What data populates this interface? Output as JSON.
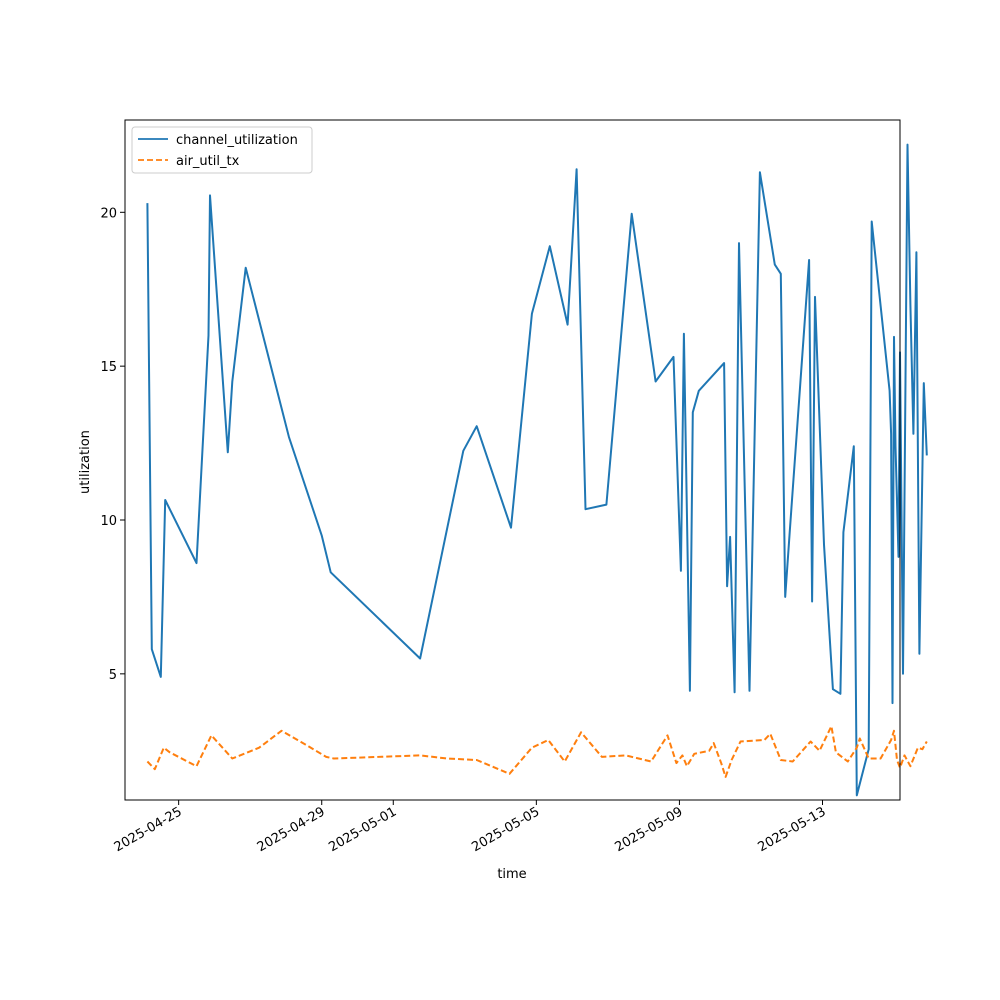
{
  "chart_data": {
    "type": "line",
    "title": "",
    "xlabel": "time",
    "ylabel": "utilization",
    "xlim": [
      "2025-04-23T12:00",
      "2025-05-15T04:00"
    ],
    "ylim": [
      0.9,
      23.0
    ],
    "grid": false,
    "legend_position": "top-left",
    "x_ticks": [
      "2025-04-25",
      "2025-04-29",
      "2025-05-01",
      "2025-05-05",
      "2025-05-09",
      "2025-05-13"
    ],
    "y_ticks": [
      5,
      10,
      15,
      20
    ],
    "series": [
      {
        "name": "channel_utilization",
        "color": "#1f77b4",
        "dash": "solid",
        "points": [
          [
            "2025-04-24T03:00",
            20.3
          ],
          [
            "2025-04-24T06:00",
            5.8
          ],
          [
            "2025-04-24T12:00",
            4.9
          ],
          [
            "2025-04-24T15:00",
            10.65
          ],
          [
            "2025-04-25T12:00",
            8.6
          ],
          [
            "2025-04-25T20:00",
            16.0
          ],
          [
            "2025-04-25T21:00",
            20.55
          ],
          [
            "2025-04-26T09:00",
            12.2
          ],
          [
            "2025-04-26T12:00",
            14.5
          ],
          [
            "2025-04-26T21:00",
            18.2
          ],
          [
            "2025-04-28T02:00",
            12.7
          ],
          [
            "2025-04-29T00:00",
            9.5
          ],
          [
            "2025-04-29T06:00",
            8.3
          ],
          [
            "2025-05-01T18:00",
            5.5
          ],
          [
            "2025-05-02T23:00",
            12.25
          ],
          [
            "2025-05-03T08:00",
            13.05
          ],
          [
            "2025-05-04T07:00",
            9.75
          ],
          [
            "2025-05-04T21:00",
            16.7
          ],
          [
            "2025-05-05T09:00",
            18.9
          ],
          [
            "2025-05-05T21:00",
            16.35
          ],
          [
            "2025-05-06T03:00",
            21.4
          ],
          [
            "2025-05-06T09:00",
            10.35
          ],
          [
            "2025-05-06T23:00",
            10.5
          ],
          [
            "2025-05-07T16:00",
            19.95
          ],
          [
            "2025-05-08T08:00",
            14.5
          ],
          [
            "2025-05-08T20:00",
            15.3
          ],
          [
            "2025-05-09T01:00",
            8.35
          ],
          [
            "2025-05-09T03:00",
            16.05
          ],
          [
            "2025-05-09T07:00",
            4.45
          ],
          [
            "2025-05-09T09:00",
            13.5
          ],
          [
            "2025-05-09T13:00",
            14.2
          ],
          [
            "2025-05-10T06:00",
            15.1
          ],
          [
            "2025-05-10T08:00",
            7.85
          ],
          [
            "2025-05-10T10:00",
            9.45
          ],
          [
            "2025-05-10T13:00",
            4.4
          ],
          [
            "2025-05-10T16:00",
            19.0
          ],
          [
            "2025-05-10T23:00",
            4.45
          ],
          [
            "2025-05-11T06:00",
            21.3
          ],
          [
            "2025-05-11T16:00",
            18.3
          ],
          [
            "2025-05-11T20:00",
            18.0
          ],
          [
            "2025-05-11T23:00",
            7.5
          ],
          [
            "2025-05-12T02:00",
            9.6
          ],
          [
            "2025-05-12T15:00",
            18.45
          ],
          [
            "2025-05-12T17:00",
            7.35
          ],
          [
            "2025-05-12T19:00",
            17.25
          ],
          [
            "2025-05-13T01:00",
            9.2
          ],
          [
            "2025-05-13T07:00",
            4.5
          ],
          [
            "2025-05-13T12:00",
            4.35
          ],
          [
            "2025-05-13T14:00",
            9.6
          ],
          [
            "2025-05-13T21:00",
            12.4
          ],
          [
            "2025-05-13T23:00",
            1.05
          ],
          [
            "2025-05-14T07:00",
            2.55
          ],
          [
            "2025-05-14T09:00",
            19.7
          ],
          [
            "2025-05-14T21:00",
            14.2
          ],
          [
            "2025-05-14T22:00",
            12.8
          ],
          [
            "2025-05-14T23:00",
            4.05
          ],
          [
            "2025-05-15T00:00",
            15.95
          ],
          [
            "2025-05-15T01:00",
            12.4
          ],
          [
            "2025-05-15T03:00",
            8.8
          ],
          [
            "2025-05-15T04:00",
            15.45
          ],
          [
            "2025-05-15T06:00",
            5.0
          ],
          [
            "2025-05-15T09:00",
            22.2
          ],
          [
            "2025-05-15T11:00",
            17.0
          ],
          [
            "2025-05-15T13:00",
            12.8
          ],
          [
            "2025-05-15T15:00",
            18.7
          ],
          [
            "2025-05-15T17:00",
            5.65
          ],
          [
            "2025-05-15T20:00",
            14.45
          ],
          [
            "2025-05-15T22:00",
            12.1
          ]
        ]
      },
      {
        "name": "air_util_tx",
        "color": "#ff7f0e",
        "dash": "dashed",
        "points": [
          [
            "2025-04-24T03:00",
            2.15
          ],
          [
            "2025-04-24T08:00",
            1.9
          ],
          [
            "2025-04-24T14:00",
            2.6
          ],
          [
            "2025-04-24T18:00",
            2.45
          ],
          [
            "2025-04-25T12:00",
            2.0
          ],
          [
            "2025-04-25T22:00",
            3.0
          ],
          [
            "2025-04-26T12:00",
            2.25
          ],
          [
            "2025-04-27T06:00",
            2.6
          ],
          [
            "2025-04-27T21:00",
            3.15
          ],
          [
            "2025-04-28T15:00",
            2.65
          ],
          [
            "2025-04-29T03:00",
            2.3
          ],
          [
            "2025-04-29T08:00",
            2.25
          ],
          [
            "2025-05-01T18:00",
            2.35
          ],
          [
            "2025-05-02T12:00",
            2.25
          ],
          [
            "2025-05-03T08:00",
            2.2
          ],
          [
            "2025-05-04T06:00",
            1.75
          ],
          [
            "2025-05-04T21:00",
            2.6
          ],
          [
            "2025-05-05T08:00",
            2.85
          ],
          [
            "2025-05-05T19:00",
            2.15
          ],
          [
            "2025-05-06T06:00",
            3.1
          ],
          [
            "2025-05-06T20:00",
            2.3
          ],
          [
            "2025-05-07T12:00",
            2.35
          ],
          [
            "2025-05-08T05:00",
            2.15
          ],
          [
            "2025-05-08T16:00",
            3.0
          ],
          [
            "2025-05-08T22:00",
            2.1
          ],
          [
            "2025-05-09T02:00",
            2.35
          ],
          [
            "2025-05-09T05:00",
            2.0
          ],
          [
            "2025-05-09T10:00",
            2.4
          ],
          [
            "2025-05-09T20:00",
            2.5
          ],
          [
            "2025-05-09T23:00",
            2.75
          ],
          [
            "2025-05-10T04:00",
            2.1
          ],
          [
            "2025-05-10T07:00",
            1.65
          ],
          [
            "2025-05-10T11:00",
            2.2
          ],
          [
            "2025-05-10T17:00",
            2.8
          ],
          [
            "2025-05-11T09:00",
            2.85
          ],
          [
            "2025-05-11T13:00",
            3.05
          ],
          [
            "2025-05-11T20:00",
            2.2
          ],
          [
            "2025-05-12T04:00",
            2.15
          ],
          [
            "2025-05-12T16:00",
            2.8
          ],
          [
            "2025-05-12T22:00",
            2.5
          ],
          [
            "2025-05-13T06:00",
            3.3
          ],
          [
            "2025-05-13T09:00",
            2.45
          ],
          [
            "2025-05-13T17:00",
            2.15
          ],
          [
            "2025-05-13T23:00",
            2.6
          ],
          [
            "2025-05-14T01:00",
            2.9
          ],
          [
            "2025-05-14T07:00",
            2.25
          ],
          [
            "2025-05-14T15:00",
            2.25
          ],
          [
            "2025-05-14T22:00",
            2.85
          ],
          [
            "2025-05-15T00:00",
            3.15
          ],
          [
            "2025-05-15T02:00",
            2.2
          ],
          [
            "2025-05-15T04:00",
            1.95
          ],
          [
            "2025-05-15T07:00",
            2.35
          ],
          [
            "2025-05-15T11:00",
            2.0
          ],
          [
            "2025-05-15T16:00",
            2.6
          ],
          [
            "2025-05-15T19:00",
            2.55
          ],
          [
            "2025-05-15T22:00",
            2.8
          ]
        ]
      }
    ]
  }
}
